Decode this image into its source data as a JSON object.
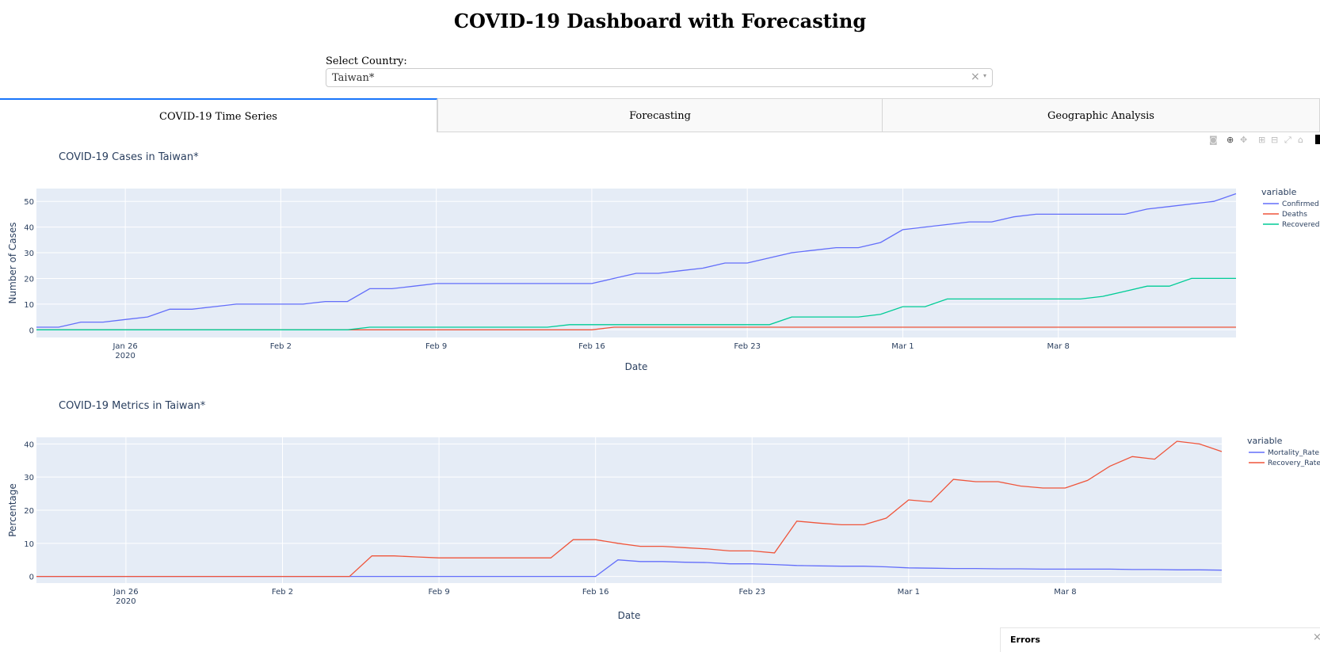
{
  "page": {
    "title": "COVID-19 Dashboard with Forecasting"
  },
  "country_selector": {
    "label": "Select Country:",
    "value": "Taiwan*",
    "clear_icon": "×",
    "arrow_icon": "▾"
  },
  "tabs": [
    {
      "label": "COVID-19 Time Series",
      "active": true
    },
    {
      "label": "Forecasting",
      "active": false
    },
    {
      "label": "Geographic Analysis",
      "active": false
    }
  ],
  "modebar_icons": [
    "camera-icon",
    "zoom-icon",
    "pan-icon",
    "zoom-in-icon",
    "zoom-out-icon",
    "autoscale-icon",
    "reset-axes-icon",
    "plotly-logo-icon"
  ],
  "errors_panel": {
    "label": "Errors",
    "close_icon": "×"
  },
  "chart_data": [
    {
      "type": "line",
      "title": "COVID-19 Cases in Taiwan*",
      "xlabel": "Date",
      "ylabel": "Number of Cases",
      "legend_title": "variable",
      "legend_position": "right",
      "grid": true,
      "x_start": "2020-01-22",
      "x_end": "2020-03-16",
      "xlim": [
        "2020-01-22",
        "2020-03-16"
      ],
      "ylim": [
        -3,
        55
      ],
      "yticks": [
        0,
        10,
        20,
        30,
        40,
        50
      ],
      "xticks": [
        {
          "date": "2020-01-26",
          "label": "Jan 26",
          "sublabel": "2020"
        },
        {
          "date": "2020-02-02",
          "label": "Feb 2",
          "sublabel": ""
        },
        {
          "date": "2020-02-09",
          "label": "Feb 9",
          "sublabel": ""
        },
        {
          "date": "2020-02-16",
          "label": "Feb 16",
          "sublabel": ""
        },
        {
          "date": "2020-02-23",
          "label": "Feb 23",
          "sublabel": ""
        },
        {
          "date": "2020-03-01",
          "label": "Mar 1",
          "sublabel": ""
        },
        {
          "date": "2020-03-08",
          "label": "Mar 8",
          "sublabel": ""
        }
      ],
      "series": [
        {
          "name": "Confirmed",
          "color": "#636efa",
          "values": [
            1,
            1,
            3,
            3,
            4,
            5,
            8,
            8,
            9,
            10,
            10,
            10,
            10,
            11,
            11,
            16,
            16,
            17,
            18,
            18,
            18,
            18,
            18,
            18,
            18,
            18,
            20,
            22,
            22,
            23,
            24,
            26,
            26,
            28,
            30,
            31,
            32,
            32,
            34,
            39,
            40,
            41,
            42,
            42,
            44,
            45,
            45,
            45,
            45,
            45,
            47,
            48,
            49,
            50,
            53
          ]
        },
        {
          "name": "Deaths",
          "color": "#ef553b",
          "values": [
            0,
            0,
            0,
            0,
            0,
            0,
            0,
            0,
            0,
            0,
            0,
            0,
            0,
            0,
            0,
            0,
            0,
            0,
            0,
            0,
            0,
            0,
            0,
            0,
            0,
            0,
            1,
            1,
            1,
            1,
            1,
            1,
            1,
            1,
            1,
            1,
            1,
            1,
            1,
            1,
            1,
            1,
            1,
            1,
            1,
            1,
            1,
            1,
            1,
            1,
            1,
            1,
            1,
            1,
            1
          ]
        },
        {
          "name": "Recovered",
          "color": "#00cc96",
          "values": [
            0,
            0,
            0,
            0,
            0,
            0,
            0,
            0,
            0,
            0,
            0,
            0,
            0,
            0,
            0,
            1,
            1,
            1,
            1,
            1,
            1,
            1,
            1,
            1,
            2,
            2,
            2,
            2,
            2,
            2,
            2,
            2,
            2,
            2,
            5,
            5,
            5,
            5,
            6,
            9,
            9,
            12,
            12,
            12,
            12,
            12,
            12,
            12,
            13,
            15,
            17,
            17,
            20,
            20,
            20
          ]
        }
      ]
    },
    {
      "type": "line",
      "title": "COVID-19 Metrics in Taiwan*",
      "xlabel": "Date",
      "ylabel": "Percentage",
      "legend_title": "variable",
      "legend_position": "right",
      "grid": true,
      "x_start": "2020-01-22",
      "x_end": "2020-03-15",
      "xlim": [
        "2020-01-22",
        "2020-03-15"
      ],
      "ylim": [
        -2,
        42
      ],
      "yticks": [
        0,
        10,
        20,
        30,
        40
      ],
      "xticks": [
        {
          "date": "2020-01-26",
          "label": "Jan 26",
          "sublabel": "2020"
        },
        {
          "date": "2020-02-02",
          "label": "Feb 2",
          "sublabel": ""
        },
        {
          "date": "2020-02-09",
          "label": "Feb 9",
          "sublabel": ""
        },
        {
          "date": "2020-02-16",
          "label": "Feb 16",
          "sublabel": ""
        },
        {
          "date": "2020-02-23",
          "label": "Feb 23",
          "sublabel": ""
        },
        {
          "date": "2020-03-01",
          "label": "Mar 1",
          "sublabel": ""
        },
        {
          "date": "2020-03-08",
          "label": "Mar 8",
          "sublabel": ""
        }
      ],
      "series": [
        {
          "name": "Mortality_Rate",
          "color": "#636efa",
          "values": [
            0,
            0,
            0,
            0,
            0,
            0,
            0,
            0,
            0,
            0,
            0,
            0,
            0,
            0,
            0,
            0,
            0,
            0,
            0,
            0,
            0,
            0,
            0,
            0,
            0,
            0,
            5,
            4.5,
            4.5,
            4.3,
            4.2,
            3.8,
            3.8,
            3.6,
            3.3,
            3.2,
            3.1,
            3.1,
            2.9,
            2.6,
            2.5,
            2.4,
            2.4,
            2.3,
            2.3,
            2.2,
            2.2,
            2.2,
            2.2,
            2.1,
            2.1,
            2.0,
            2.0,
            1.9
          ]
        },
        {
          "name": "Recovery_Rate",
          "color": "#ef553b",
          "values": [
            0,
            0,
            0,
            0,
            0,
            0,
            0,
            0,
            0,
            0,
            0,
            0,
            0,
            0,
            0,
            6.2,
            6.2,
            5.9,
            5.6,
            5.6,
            5.6,
            5.6,
            5.6,
            5.6,
            11.1,
            11.1,
            10,
            9.1,
            9.1,
            8.7,
            8.3,
            7.7,
            7.7,
            7.1,
            16.7,
            16.1,
            15.6,
            15.6,
            17.6,
            23.1,
            22.5,
            29.3,
            28.6,
            28.6,
            27.3,
            26.7,
            26.7,
            29.0,
            33.3,
            36.2,
            35.4,
            40.8,
            40.0,
            37.7
          ]
        }
      ]
    }
  ]
}
